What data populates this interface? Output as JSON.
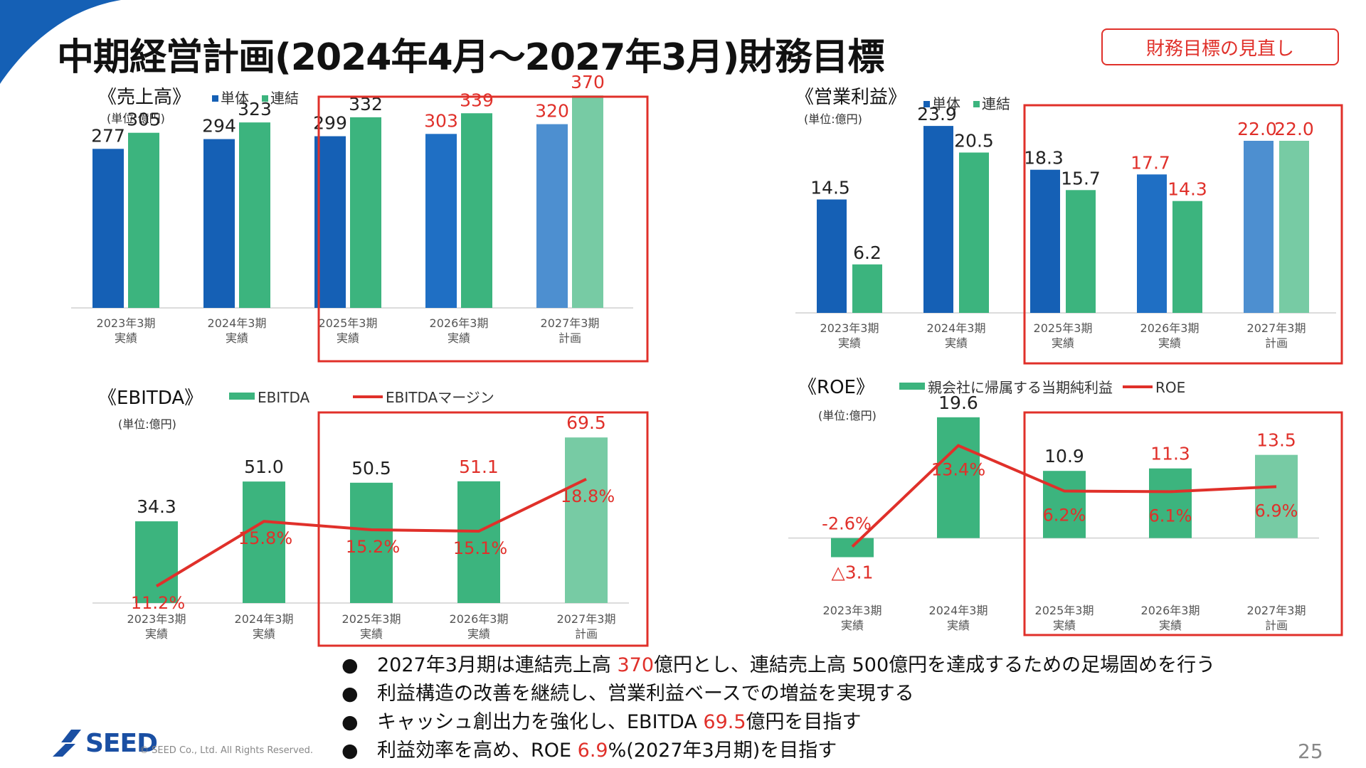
{
  "header": {
    "title": "中期経営計画(2024年4月〜2027年3月)財務目標",
    "review_button": "財務目標の見直し"
  },
  "colors": {
    "tandai_blue": "#1560b5",
    "renketsu_green": "#3cb47e",
    "plan_blue": "#4d8fd0",
    "plan_green": "#77cba4",
    "accent_red": "#e0302a",
    "brand_blue": "#1a4fa3"
  },
  "chart_data": [
    {
      "id": "sales",
      "type": "bar",
      "title": "《売上高》",
      "unit": "(単位:億円)",
      "categories": [
        "2023年3期",
        "2024年3期",
        "2025年3期",
        "2026年3期",
        "2027年3期"
      ],
      "category_sub": [
        "実績",
        "実績",
        "実績",
        "実績",
        "計画"
      ],
      "series": [
        {
          "name": "単体",
          "values": [
            277,
            294,
            299,
            303,
            320
          ]
        },
        {
          "name": "連結",
          "values": [
            305,
            323,
            332,
            339,
            370
          ]
        }
      ],
      "ylim": [
        0,
        400
      ],
      "legend": "top-left",
      "highlight_categories": [
        2,
        4
      ]
    },
    {
      "id": "op_income",
      "type": "bar",
      "title": "《営業利益》",
      "unit": "(単位:億円)",
      "categories": [
        "2023年3期",
        "2024年3期",
        "2025年3期",
        "2026年3期",
        "2027年3期"
      ],
      "category_sub": [
        "実績",
        "実績",
        "実績",
        "実績",
        "計画"
      ],
      "series": [
        {
          "name": "単体",
          "values": [
            14.5,
            23.9,
            18.3,
            17.7,
            22.0
          ]
        },
        {
          "name": "連結",
          "values": [
            6.2,
            20.5,
            15.7,
            14.3,
            22.0
          ]
        }
      ],
      "value_labels": [
        [
          "14.5",
          "23.9",
          "18.3",
          "17.7",
          "22.0"
        ],
        [
          "6.2",
          "20.5",
          "15.7",
          "14.3",
          "22.0"
        ]
      ],
      "ylim": [
        0,
        30
      ],
      "legend": "top-left",
      "highlight_categories": [
        2,
        4
      ]
    },
    {
      "id": "ebitda",
      "type": "bar+line",
      "title": "《EBITDA》",
      "unit": "(単位:億円)",
      "categories": [
        "2023年3期",
        "2024年3期",
        "2025年3期",
        "2026年3期",
        "2027年3期"
      ],
      "category_sub": [
        "実績",
        "実績",
        "実績",
        "実績",
        "計画"
      ],
      "bar_series": {
        "name": "EBITDA",
        "values": [
          34.3,
          51.0,
          50.5,
          51.1,
          69.5
        ],
        "labels": [
          "34.3",
          "51.0",
          "50.5",
          "51.1",
          "69.5"
        ]
      },
      "line_series": {
        "name": "EBITDAマージン",
        "values": [
          11.2,
          15.8,
          15.2,
          15.1,
          18.8
        ],
        "labels": [
          "11.2%",
          "15.8%",
          "15.2%",
          "15.1%",
          "18.8%"
        ]
      },
      "ylim": [
        0,
        80
      ],
      "y2lim": [
        10,
        20
      ],
      "legend": "top",
      "highlight_categories": [
        2,
        4
      ]
    },
    {
      "id": "roe",
      "type": "bar+line",
      "title": "《ROE》",
      "unit": "(単位:億円)",
      "categories": [
        "2023年3期",
        "2024年3期",
        "2025年3期",
        "2026年3期",
        "2027年3期"
      ],
      "category_sub": [
        "実績",
        "実績",
        "実績",
        "実績",
        "計画"
      ],
      "bar_series": {
        "name": "親会社に帰属する当期純利益",
        "values": [
          -3.1,
          19.6,
          10.9,
          11.3,
          13.5
        ],
        "labels": [
          "△3.1",
          "19.6",
          "10.9",
          "11.3",
          "13.5"
        ]
      },
      "line_series": {
        "name": "ROE",
        "values": [
          -2.6,
          13.4,
          6.2,
          6.1,
          6.9
        ],
        "labels": [
          "-2.6%",
          "13.4%",
          "6.2%",
          "6.1%",
          "6.9%"
        ]
      },
      "ylim": [
        -5,
        25
      ],
      "y2lim": [
        -5,
        20
      ],
      "legend": "top",
      "highlight_categories": [
        2,
        4
      ]
    }
  ],
  "bullets": [
    {
      "pre": "2027年3月期は連結売上高 ",
      "red": "370",
      "post": "億円とし、連結売上高 500億円を達成するための足場固めを行う"
    },
    {
      "pre": "利益構造の改善を継続し、営業利益ベースでの増益を実現する",
      "red": "",
      "post": ""
    },
    {
      "pre": "キャッシュ創出力を強化し、EBITDA ",
      "red": "69.5",
      "post": "億円を目指す"
    },
    {
      "pre": "利益効率を高め、ROE ",
      "red": "6.9",
      "post": "%(2027年3月期)を目指す"
    }
  ],
  "bullet_symbol": "●",
  "footer": {
    "logo_text": "SEED",
    "copyright": "© SEED Co., Ltd. All Rights Reserved.",
    "page_number": "25"
  }
}
